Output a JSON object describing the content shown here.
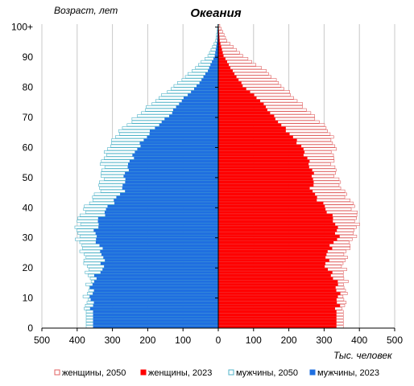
{
  "chart_data": {
    "type": "bar",
    "orientation": "horizontal",
    "title": "Океания",
    "ylabel": "Возраст, лет",
    "xlabel": "Тыс. человек",
    "y_ticks": [
      "0",
      "10",
      "20",
      "30",
      "40",
      "50",
      "60",
      "70",
      "80",
      "90",
      "100+"
    ],
    "x_ticks": [
      "500",
      "400",
      "300",
      "200",
      "100",
      "0",
      "100",
      "200",
      "300",
      "400",
      "500"
    ],
    "xlim": [
      -500,
      500
    ],
    "grid": "vertical",
    "legend_position": "bottom",
    "age_range": [
      0,
      100
    ],
    "colors": {
      "women_2050": "#e06060",
      "women_2023": "#ff0000",
      "men_2050": "#4fb3c8",
      "men_2023": "#1f6fe0"
    },
    "series": [
      {
        "name": "женщины, 2050",
        "side": "right",
        "style": "outline",
        "key_ages": [
          0,
          5,
          10,
          15,
          20,
          25,
          30,
          35,
          40,
          45,
          50,
          55,
          60,
          65,
          70,
          75,
          80,
          85,
          90,
          95,
          100
        ],
        "key_values": [
          355,
          355,
          360,
          360,
          355,
          365,
          385,
          395,
          385,
          355,
          335,
          325,
          330,
          315,
          270,
          225,
          180,
          135,
          70,
          25,
          5
        ]
      },
      {
        "name": "женщины, 2023",
        "side": "right",
        "style": "filled",
        "key_ages": [
          0,
          5,
          10,
          15,
          20,
          25,
          30,
          35,
          40,
          45,
          50,
          55,
          60,
          65,
          70,
          75,
          80,
          85,
          90,
          95,
          100
        ],
        "key_values": [
          335,
          335,
          340,
          335,
          305,
          310,
          340,
          330,
          300,
          265,
          270,
          255,
          235,
          195,
          155,
          120,
          70,
          40,
          15,
          4,
          1
        ]
      },
      {
        "name": "мужчины, 2050",
        "side": "left",
        "style": "outline",
        "key_ages": [
          0,
          5,
          10,
          15,
          20,
          25,
          30,
          35,
          40,
          45,
          50,
          55,
          60,
          65,
          70,
          75,
          80,
          85,
          90,
          95,
          100
        ],
        "key_values": [
          375,
          375,
          375,
          365,
          375,
          385,
          400,
          400,
          375,
          340,
          330,
          330,
          310,
          280,
          230,
          180,
          125,
          75,
          30,
          8,
          2
        ]
      },
      {
        "name": "мужчины, 2023",
        "side": "left",
        "style": "filled",
        "key_ages": [
          0,
          5,
          10,
          15,
          20,
          25,
          30,
          35,
          40,
          45,
          50,
          55,
          60,
          65,
          70,
          75,
          80,
          85,
          90,
          95,
          100
        ],
        "key_values": [
          355,
          355,
          360,
          355,
          325,
          330,
          350,
          340,
          310,
          270,
          265,
          250,
          225,
          190,
          140,
          105,
          60,
          30,
          10,
          3,
          1
        ]
      }
    ]
  }
}
